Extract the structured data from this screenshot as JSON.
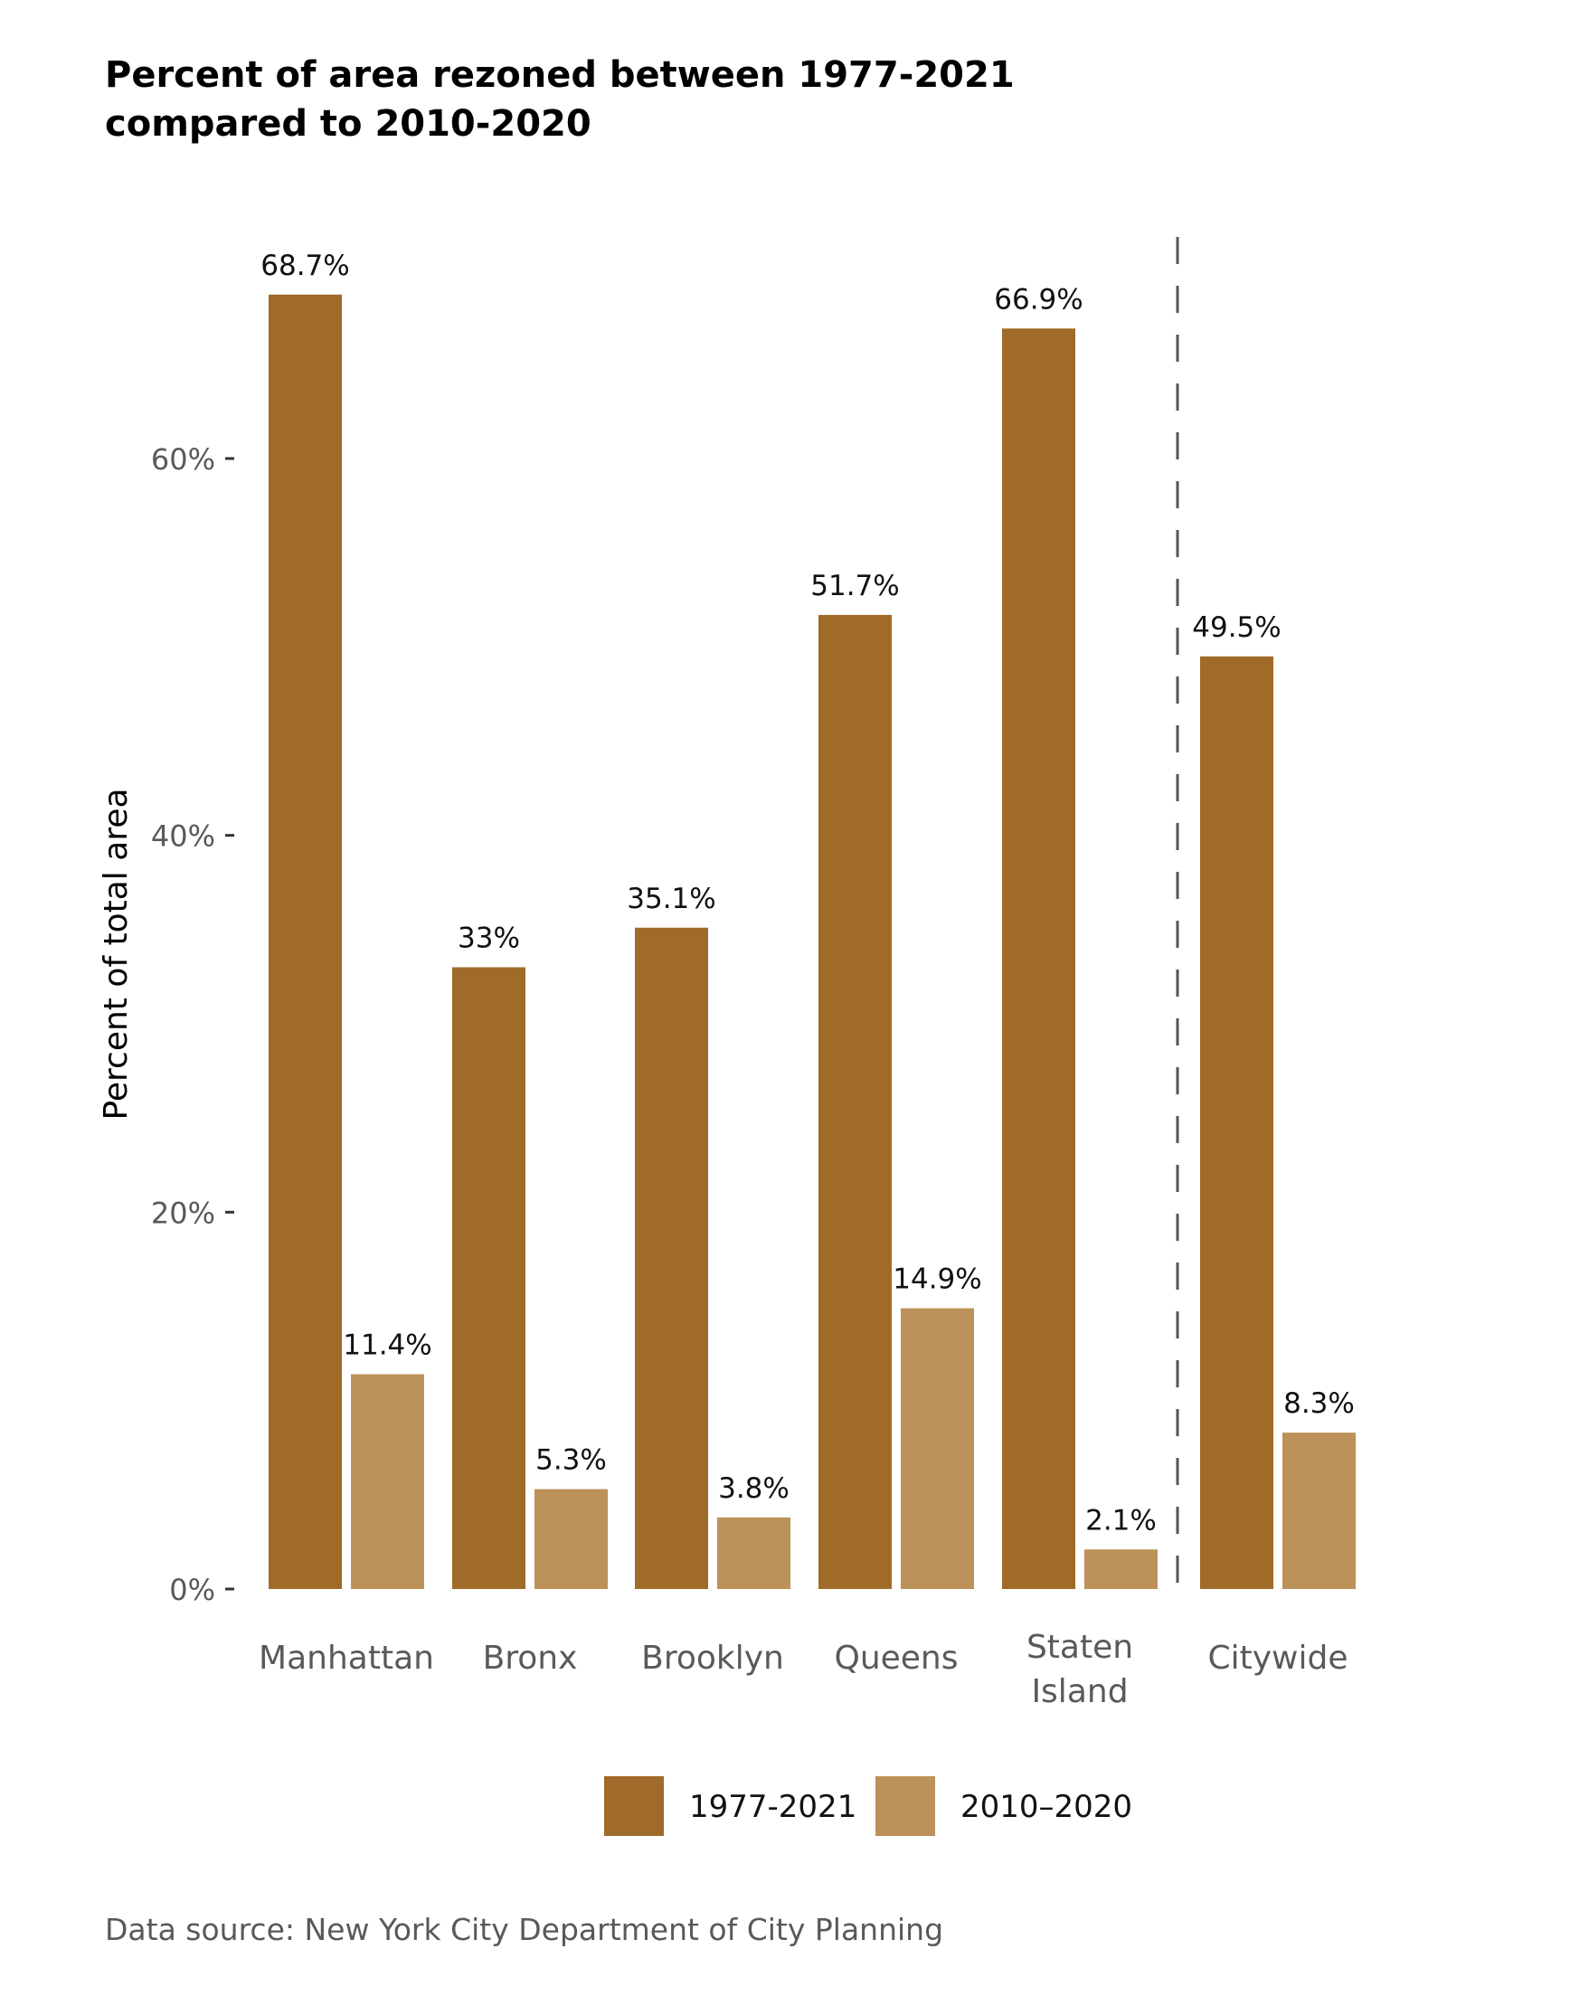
{
  "chart_data": {
    "type": "bar",
    "title_lines": [
      "Percent of area rezoned between 1977-2021",
      "compared to 2010-2020"
    ],
    "ylabel": "Percent of total area",
    "ylim": [
      0,
      70
    ],
    "yticks": [
      0,
      20,
      40,
      60
    ],
    "ytick_labels": [
      "0%",
      "20%",
      "40%",
      "60%"
    ],
    "grid": false,
    "categories": [
      {
        "lines": [
          "Manhattan"
        ]
      },
      {
        "lines": [
          "Bronx"
        ]
      },
      {
        "lines": [
          "Brooklyn"
        ]
      },
      {
        "lines": [
          "Queens"
        ]
      },
      {
        "lines": [
          "Staten",
          "Island"
        ]
      },
      {
        "lines": [
          "Citywide"
        ]
      }
    ],
    "series": [
      {
        "name": "1977-2021",
        "color": "#A06A28",
        "values": [
          68.7,
          33.0,
          35.1,
          51.7,
          66.9,
          49.5
        ],
        "labels": [
          "68.7%",
          "33%",
          "35.1%",
          "51.7%",
          "66.9%",
          "49.5%"
        ]
      },
      {
        "name": "2010–2020",
        "color": "#BD915A",
        "values": [
          11.4,
          5.3,
          3.8,
          14.9,
          2.1,
          8.3
        ],
        "labels": [
          "11.4%",
          "5.3%",
          "3.8%",
          "14.9%",
          "2.1%",
          "8.3%"
        ]
      }
    ],
    "divider_after_category": 4,
    "legend_position": "bottom-center",
    "source": "Data source: New York City Department of City Planning"
  }
}
